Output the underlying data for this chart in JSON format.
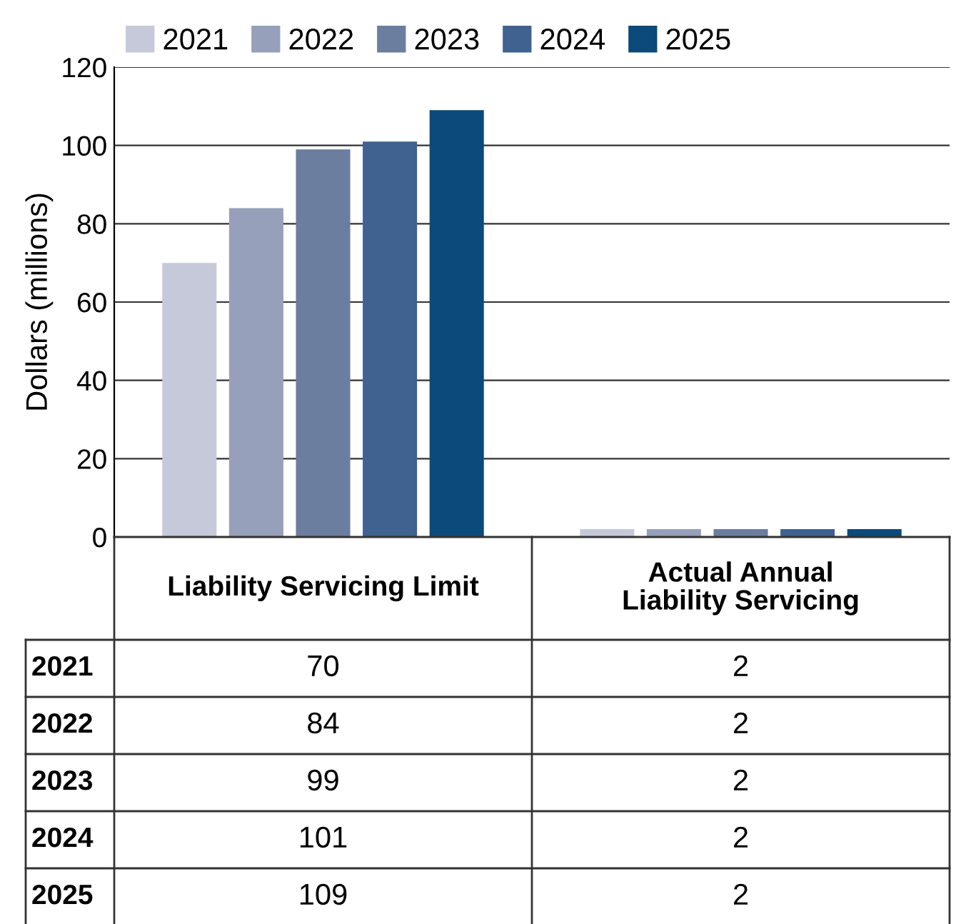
{
  "chart_data": {
    "type": "bar",
    "ylabel": "Dollars (millions)",
    "categories": [
      "Liability Servicing Limit",
      "Actual Annual\nLiability Servicing"
    ],
    "series": [
      {
        "name": "2021",
        "color": "#c5c9d9",
        "values": [
          70,
          2
        ]
      },
      {
        "name": "2022",
        "color": "#96a0ba",
        "values": [
          84,
          2
        ]
      },
      {
        "name": "2023",
        "color": "#6b7ea0",
        "values": [
          99,
          2
        ]
      },
      {
        "name": "2024",
        "color": "#3f6290",
        "values": [
          101,
          2
        ]
      },
      {
        "name": "2025",
        "color": "#0b4a7a",
        "values": [
          109,
          2
        ]
      }
    ],
    "ylim": [
      0,
      120
    ],
    "yticks": [
      0,
      20,
      40,
      60,
      80,
      100,
      120
    ],
    "grid": "y",
    "legend": "top left",
    "data_labels": true
  }
}
